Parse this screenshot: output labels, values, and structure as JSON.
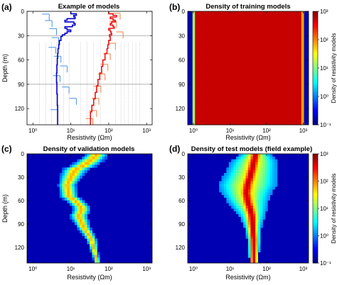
{
  "figure": {
    "panel_labels": [
      "(a)",
      "(b)",
      "(c)",
      "(d)"
    ],
    "titles": [
      "Example of models",
      "Density of training models",
      "Density of validation models",
      "Density of test models (field example)"
    ],
    "xlabel": "Resistivity (Ωm)",
    "ylabel": "Depth (m)",
    "colorbar_label": "Density of resistivity models",
    "colormap": [
      "#00007f",
      "#0000ff",
      "#007fff",
      "#00ffff",
      "#7fff7f",
      "#ffff00",
      "#ff7f00",
      "#ff0000",
      "#7f0000"
    ],
    "colors": {
      "blue": "#0000cd",
      "lightblue": "#4a90e2",
      "red": "#ee1111",
      "orange": "#f08040",
      "gray": "#bbbbbb"
    }
  },
  "chart_data": [
    {
      "type": "line",
      "title": "Example of models",
      "xlabel": "Resistivity (Ωm)",
      "ylabel": "Depth (m)",
      "xscale": "log",
      "xlim": [
        0.7,
        1400
      ],
      "ylim": [
        140,
        0
      ],
      "xticks": [
        "10⁰",
        "10¹",
        "10²",
        "10³"
      ],
      "yticks": [
        "0",
        "30",
        "60",
        "90",
        "120"
      ],
      "ref_lines": [
        30,
        90
      ],
      "series": [
        {
          "color": "blue",
          "points": [
            [
              10,
              0
            ],
            [
              10,
              3
            ],
            [
              14,
              3
            ],
            [
              14,
              5
            ],
            [
              12,
              5
            ],
            [
              12,
              7
            ],
            [
              13,
              7
            ],
            [
              13,
              9
            ],
            [
              8,
              9
            ],
            [
              8,
              11
            ],
            [
              7,
              11
            ],
            [
              7,
              13
            ],
            [
              12,
              13
            ],
            [
              12,
              15
            ],
            [
              13,
              15
            ],
            [
              13,
              17
            ],
            [
              11,
              17
            ],
            [
              11,
              19
            ],
            [
              7,
              19
            ],
            [
              7,
              21
            ],
            [
              8,
              21
            ],
            [
              8,
              23
            ],
            [
              10,
              23
            ],
            [
              10,
              25
            ],
            [
              8,
              25
            ],
            [
              8,
              27
            ],
            [
              7,
              27
            ],
            [
              7,
              29
            ],
            [
              6,
              29
            ],
            [
              6,
              31
            ],
            [
              5.5,
              31
            ],
            [
              5.5,
              36
            ],
            [
              5,
              36
            ],
            [
              5,
              41
            ],
            [
              4.8,
              41
            ],
            [
              4.8,
              46
            ],
            [
              4.6,
              46
            ],
            [
              4.6,
              52
            ],
            [
              4.5,
              52
            ],
            [
              4.5,
              58
            ],
            [
              4.4,
              58
            ],
            [
              4.4,
              66
            ],
            [
              4.3,
              66
            ],
            [
              4.3,
              76
            ],
            [
              4.2,
              76
            ],
            [
              4.2,
              88
            ],
            [
              4.3,
              88
            ],
            [
              4.3,
              102
            ],
            [
              4.4,
              102
            ],
            [
              4.4,
              116
            ],
            [
              4.5,
              116
            ],
            [
              4.5,
              140
            ]
          ]
        },
        {
          "color": "red",
          "points": [
            [
              100,
              0
            ],
            [
              100,
              3
            ],
            [
              130,
              3
            ],
            [
              130,
              5
            ],
            [
              160,
              5
            ],
            [
              160,
              7
            ],
            [
              110,
              7
            ],
            [
              110,
              9
            ],
            [
              130,
              9
            ],
            [
              130,
              11
            ],
            [
              150,
              11
            ],
            [
              150,
              13
            ],
            [
              120,
              13
            ],
            [
              120,
              15
            ],
            [
              110,
              15
            ],
            [
              110,
              17
            ],
            [
              130,
              17
            ],
            [
              130,
              19
            ],
            [
              140,
              19
            ],
            [
              140,
              21
            ],
            [
              100,
              21
            ],
            [
              100,
              23
            ],
            [
              110,
              23
            ],
            [
              110,
              25
            ],
            [
              115,
              25
            ],
            [
              115,
              27
            ],
            [
              120,
              27
            ],
            [
              120,
              29
            ],
            [
              105,
              29
            ],
            [
              105,
              31
            ],
            [
              110,
              31
            ],
            [
              110,
              36
            ],
            [
              100,
              36
            ],
            [
              100,
              41
            ],
            [
              95,
              41
            ],
            [
              95,
              46
            ],
            [
              90,
              46
            ],
            [
              90,
              52
            ],
            [
              80,
              52
            ],
            [
              80,
              60
            ],
            [
              70,
              60
            ],
            [
              70,
              68
            ],
            [
              65,
              68
            ],
            [
              65,
              76
            ],
            [
              58,
              76
            ],
            [
              58,
              84
            ],
            [
              52,
              84
            ],
            [
              52,
              92
            ],
            [
              48,
              92
            ],
            [
              48,
              100
            ],
            [
              44,
              100
            ],
            [
              44,
              108
            ],
            [
              40,
              108
            ],
            [
              40,
              116
            ],
            [
              36,
              116
            ],
            [
              36,
              124
            ],
            [
              33,
              124
            ],
            [
              33,
              140
            ]
          ]
        },
        {
          "color": "lightblue",
          "steps": [
            [
              2.7,
              2.7,
              6
            ],
            [
              3.2,
              3.2,
              14
            ],
            [
              4.2,
              4.2,
              24
            ],
            [
              4.8,
              4.8,
              35
            ],
            [
              4.0,
              4.0,
              47
            ],
            [
              5.5,
              5.5,
              58
            ],
            [
              8,
              8,
              70
            ],
            [
              5.2,
              5.2,
              82
            ],
            [
              9,
              9,
              96
            ],
            [
              14,
              14,
              110
            ],
            [
              4.5,
              4.5,
              124
            ]
          ]
        },
        {
          "color": "orange",
          "steps": [
            [
              200,
              200,
              5
            ],
            [
              160,
              160,
              15
            ],
            [
              240,
              240,
              28
            ],
            [
              150,
              150,
              42
            ],
            [
              110,
              110,
              55
            ],
            [
              95,
              95,
              68
            ],
            [
              80,
              80,
              80
            ],
            [
              62,
              62,
              95
            ],
            [
              55,
              55,
              110
            ],
            [
              48,
              48,
              125
            ],
            [
              38,
              38,
              135
            ]
          ]
        }
      ]
    },
    {
      "type": "heatmap",
      "title": "Density of training models",
      "xlabel": "Resistivity (Ωm)",
      "ylabel": "Depth (m)",
      "xscale": "log",
      "xlim": [
        0.7,
        1400
      ],
      "ylim": [
        140,
        0
      ],
      "colorbar": {
        "scale": "log",
        "ticks": [
          "10⁻¹",
          "10⁰",
          "10¹",
          "10²",
          "10³"
        ],
        "label": "Density of resistivity models"
      },
      "description_values": {
        "uniform_band_log10": 1.7,
        "range": [
          1,
          1000
        ]
      }
    },
    {
      "type": "heatmap",
      "title": "Density of validation models",
      "xlabel": "Resistivity (Ωm)",
      "ylabel": "Depth (m)",
      "xscale": "log",
      "xlim": [
        0.7,
        1400
      ],
      "ylim": [
        140,
        0
      ],
      "ridge": {
        "depth": [
          0,
          10,
          20,
          30,
          40,
          55,
          70,
          80,
          95,
          110,
          125,
          140
        ],
        "resistivity": [
          50,
          30,
          13,
          10,
          8,
          9,
          20,
          16,
          22,
          35,
          42,
          50
        ],
        "width_log10": [
          0.25,
          0.3,
          0.3,
          0.25,
          0.2,
          0.2,
          0.2,
          0.2,
          0.15,
          0.12,
          0.08,
          0.06
        ]
      }
    },
    {
      "type": "heatmap",
      "title": "Density of test models (field example)",
      "xlabel": "Resistivity (Ωm)",
      "ylabel": "Depth (m)",
      "xscale": "log",
      "xlim": [
        0.7,
        1400
      ],
      "ylim": [
        140,
        0
      ],
      "colorbar": {
        "scale": "log",
        "ticks": [
          "10⁻¹",
          "10⁰",
          "10¹",
          "10²",
          "10³"
        ],
        "label": "Density of resistivity models"
      },
      "ridge": {
        "depth": [
          0,
          10,
          20,
          30,
          40,
          50,
          60,
          70,
          80,
          95,
          110,
          125,
          140
        ],
        "resistivity": [
          50,
          45,
          40,
          35,
          30,
          28,
          30,
          35,
          40,
          42,
          45,
          45,
          45
        ],
        "width_log10": [
          0.35,
          0.55,
          0.6,
          0.65,
          0.7,
          0.6,
          0.5,
          0.4,
          0.3,
          0.2,
          0.15,
          0.12,
          0.1
        ]
      }
    }
  ]
}
